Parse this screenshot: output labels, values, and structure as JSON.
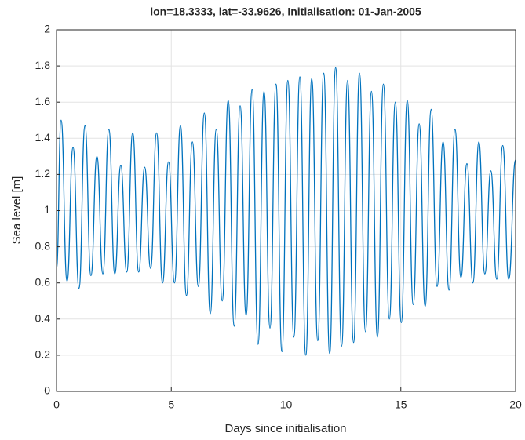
{
  "chart_data": {
    "type": "line",
    "title": "lon=18.3333, lat=-33.9626, Initialisation: 01-Jan-2005",
    "x_label": "Days since initialisation",
    "y_label": "Sea level [m]",
    "xlim": [
      0,
      20
    ],
    "ylim": [
      0,
      2
    ],
    "xticks": [
      0,
      5,
      10,
      15,
      20
    ],
    "yticks": [
      0,
      0.2,
      0.4,
      0.6,
      0.8,
      1,
      1.2,
      1.4,
      1.6,
      1.8,
      2
    ],
    "grid": true,
    "series": [
      {
        "color": "#0072bd",
        "x": [
          0,
          0.2,
          0.46,
          0.72,
          0.98,
          1.24,
          1.5,
          1.76,
          2.02,
          2.28,
          2.54,
          2.8,
          3.06,
          3.32,
          3.58,
          3.84,
          4.1,
          4.36,
          4.62,
          4.88,
          5.14,
          5.4,
          5.66,
          5.92,
          6.18,
          6.44,
          6.7,
          6.96,
          7.22,
          7.48,
          7.74,
          8.0,
          8.26,
          8.52,
          8.78,
          9.04,
          9.3,
          9.56,
          9.82,
          10.08,
          10.34,
          10.6,
          10.86,
          11.12,
          11.38,
          11.64,
          11.9,
          12.16,
          12.42,
          12.68,
          12.94,
          13.2,
          13.46,
          13.72,
          13.98,
          14.24,
          14.5,
          14.76,
          15.02,
          15.28,
          15.54,
          15.8,
          16.06,
          16.32,
          16.58,
          16.84,
          17.1,
          17.36,
          17.62,
          17.88,
          18.14,
          18.4,
          18.66,
          18.92,
          19.18,
          19.44,
          19.7,
          20
        ],
        "values": [
          0.68,
          1.5,
          0.61,
          1.35,
          0.57,
          1.47,
          0.64,
          1.3,
          0.65,
          1.45,
          0.65,
          1.25,
          0.66,
          1.43,
          0.66,
          1.24,
          0.68,
          1.43,
          0.6,
          1.27,
          0.6,
          1.47,
          0.53,
          1.38,
          0.58,
          1.54,
          0.43,
          1.45,
          0.5,
          1.61,
          0.36,
          1.58,
          0.42,
          1.67,
          0.26,
          1.66,
          0.35,
          1.7,
          0.22,
          1.72,
          0.3,
          1.74,
          0.2,
          1.73,
          0.28,
          1.76,
          0.21,
          1.79,
          0.25,
          1.72,
          0.27,
          1.76,
          0.33,
          1.66,
          0.3,
          1.7,
          0.4,
          1.6,
          0.38,
          1.61,
          0.48,
          1.48,
          0.47,
          1.56,
          0.58,
          1.38,
          0.56,
          1.45,
          0.63,
          1.26,
          0.6,
          1.38,
          0.65,
          1.22,
          0.62,
          1.36,
          0.62,
          1.28
        ]
      }
    ]
  }
}
